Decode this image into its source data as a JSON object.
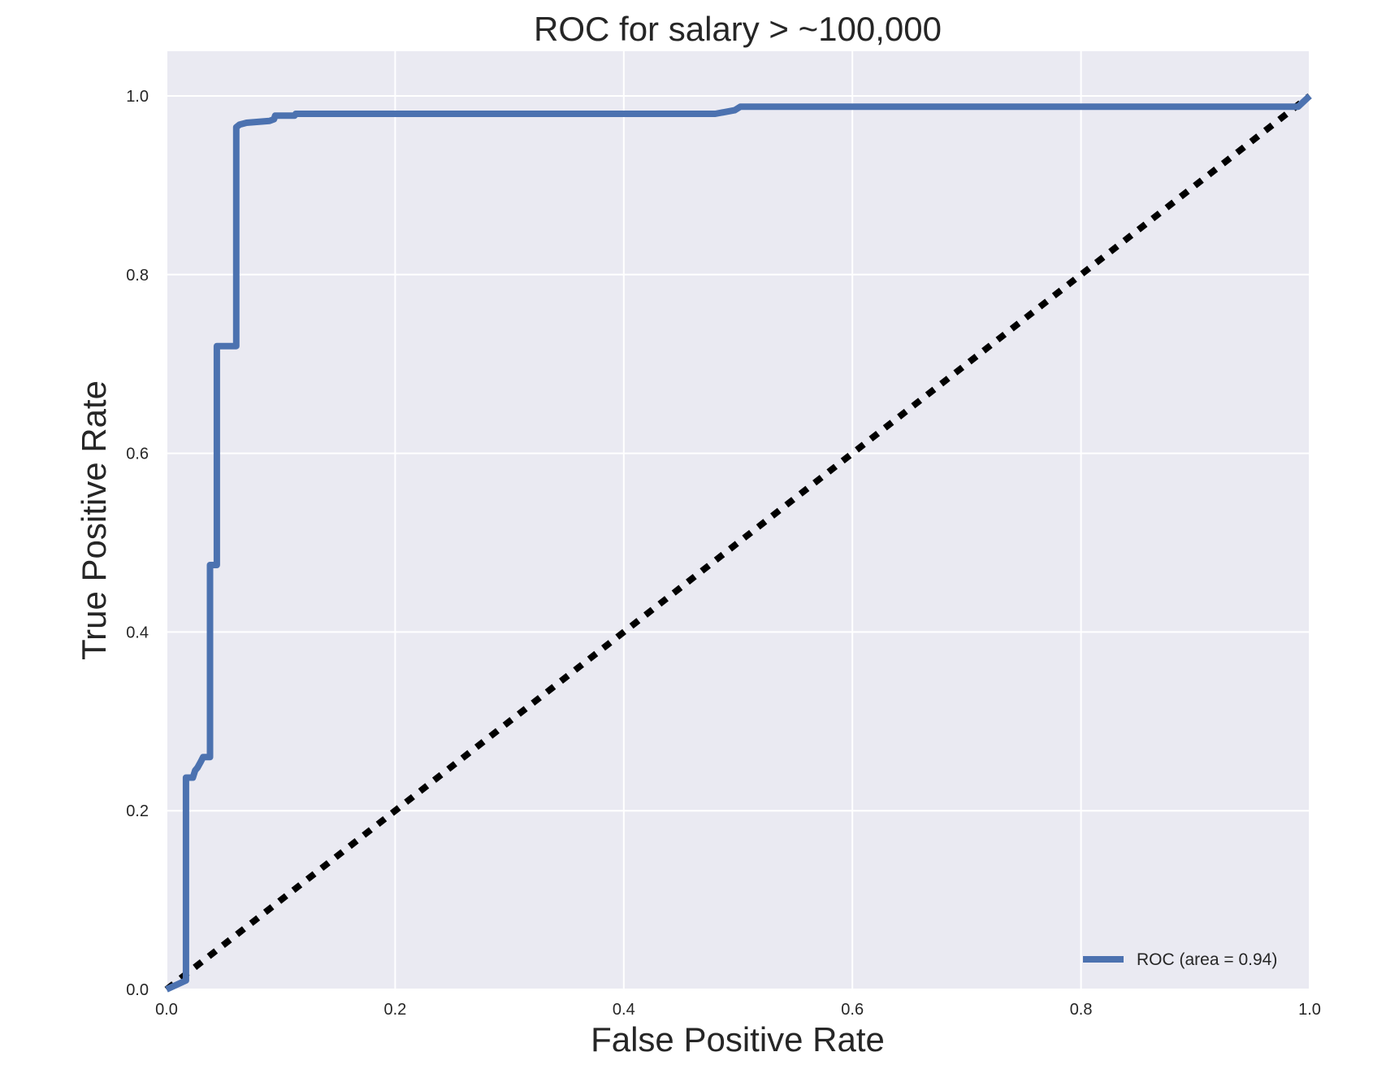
{
  "chart_data": {
    "type": "line",
    "title": "ROC for salary > ~100,000",
    "xlabel": "False Positive Rate",
    "ylabel": "True Positive Rate",
    "xlim": [
      0.0,
      1.0
    ],
    "ylim": [
      0.0,
      1.0
    ],
    "xticks": [
      "0.0",
      "0.2",
      "0.4",
      "0.6",
      "0.8",
      "1.0"
    ],
    "yticks": [
      "0.0",
      "0.2",
      "0.4",
      "0.6",
      "0.8",
      "1.0"
    ],
    "grid": true,
    "legend_position": "lower-right",
    "series": [
      {
        "name": "ROC (area = 0.94)",
        "color": "#4c72b0",
        "x": [
          0.0,
          0.017,
          0.017,
          0.017,
          0.023,
          0.025,
          0.027,
          0.03,
          0.032,
          0.038,
          0.038,
          0.044,
          0.044,
          0.061,
          0.061,
          0.064,
          0.07,
          0.09,
          0.094,
          0.095,
          0.112,
          0.113,
          0.48,
          0.497,
          0.502,
          0.99,
          1.0
        ],
        "y": [
          0.0,
          0.01,
          0.23,
          0.237,
          0.237,
          0.245,
          0.248,
          0.255,
          0.26,
          0.26,
          0.475,
          0.475,
          0.72,
          0.72,
          0.965,
          0.968,
          0.97,
          0.972,
          0.974,
          0.978,
          0.978,
          0.98,
          0.98,
          0.984,
          0.988,
          0.988,
          1.0
        ]
      }
    ],
    "reference_line": {
      "x": [
        0.0,
        1.0
      ],
      "y": [
        0.0,
        1.0
      ],
      "style": "dashed",
      "color": "#000000"
    }
  }
}
